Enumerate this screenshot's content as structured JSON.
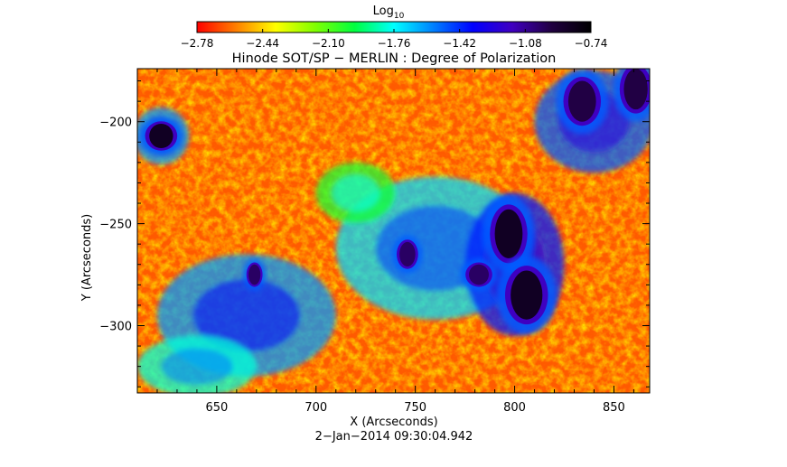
{
  "colorbar": {
    "label": "Log",
    "label_subscript": "10",
    "ticks": [
      "−2.78",
      "−2.44",
      "−2.10",
      "−1.76",
      "−1.42",
      "−1.08",
      "−0.74"
    ],
    "colors": [
      "#ff0000",
      "#ff8000",
      "#ffff00",
      "#80ff00",
      "#00ff40",
      "#00ffff",
      "#0080ff",
      "#0000ff",
      "#4000c0",
      "#200040",
      "#000000"
    ]
  },
  "chart_data": {
    "type": "heatmap",
    "title": "Hinode SOT/SP − MERLIN : Degree of Polarization",
    "xlabel": "X (Arcseconds)",
    "ylabel": "Y (Arcseconds)",
    "footer": "2−Jan−2014 09:30:04.942",
    "xlim": [
      610,
      868
    ],
    "ylim": [
      -333,
      -174
    ],
    "x_ticks": [
      {
        "value": 650,
        "label": "650"
      },
      {
        "value": 700,
        "label": "700"
      },
      {
        "value": 750,
        "label": "750"
      },
      {
        "value": 800,
        "label": "800"
      },
      {
        "value": 850,
        "label": "850"
      }
    ],
    "y_ticks": [
      {
        "value": -200,
        "label": "−200"
      },
      {
        "value": -250,
        "label": "−250"
      },
      {
        "value": -300,
        "label": "−300"
      }
    ],
    "color_scale": {
      "min": -2.78,
      "max": -0.74,
      "scale": "log10"
    },
    "features": [
      {
        "type": "pore",
        "x": 622,
        "y": -207,
        "rx": 6,
        "ry": 6,
        "value": -0.85
      },
      {
        "type": "sunspot",
        "x": 797,
        "y": -255,
        "rx": 7,
        "ry": 12,
        "value": -0.85
      },
      {
        "type": "sunspot",
        "x": 806,
        "y": -285,
        "rx": 8,
        "ry": 12,
        "value": -0.85
      },
      {
        "type": "pore",
        "x": 746,
        "y": -265,
        "rx": 4,
        "ry": 6,
        "value": -1.0
      },
      {
        "type": "pore",
        "x": 669,
        "y": -275,
        "rx": 3,
        "ry": 5,
        "value": -1.0
      },
      {
        "type": "pore",
        "x": 834,
        "y": -190,
        "rx": 7,
        "ry": 10,
        "value": -0.95
      },
      {
        "type": "pore",
        "x": 861,
        "y": -184,
        "rx": 6,
        "ry": 10,
        "value": -0.95
      },
      {
        "type": "pore",
        "x": 782,
        "y": -275,
        "rx": 5,
        "ry": 5,
        "value": -1.0
      }
    ],
    "plages": [
      {
        "x": 665,
        "y": -295,
        "rx": 45,
        "ry": 30,
        "value": -1.6
      },
      {
        "x": 760,
        "y": -262,
        "rx": 50,
        "ry": 35,
        "value": -1.7
      },
      {
        "x": 800,
        "y": -270,
        "rx": 25,
        "ry": 35,
        "value": -1.4
      },
      {
        "x": 840,
        "y": -200,
        "rx": 30,
        "ry": 25,
        "value": -1.5
      },
      {
        "x": 622,
        "y": -207,
        "rx": 14,
        "ry": 14,
        "value": -1.6
      },
      {
        "x": 720,
        "y": -235,
        "rx": 20,
        "ry": 15,
        "value": -2.0
      },
      {
        "x": 640,
        "y": -320,
        "rx": 30,
        "ry": 15,
        "value": -1.8
      }
    ]
  }
}
